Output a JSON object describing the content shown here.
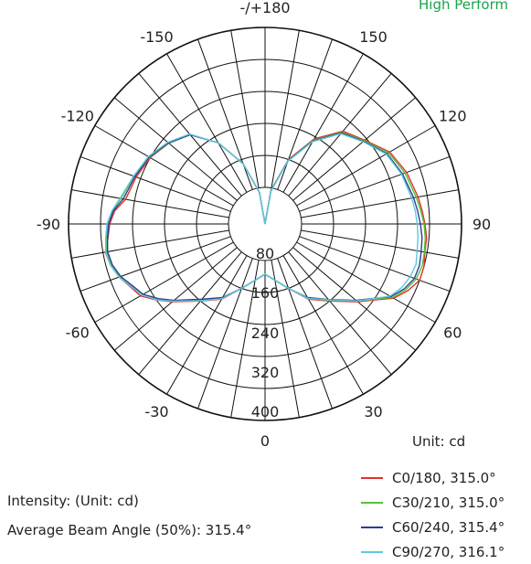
{
  "header": {
    "top_label": "High Perform"
  },
  "chart_data": {
    "type": "polar",
    "unit_label": "Unit: cd",
    "radial_ticks": [
      "80",
      "160",
      "240",
      "320",
      "400"
    ],
    "radial_max": 400,
    "angle_labels": [
      {
        "angle": 180,
        "text": "-/+180"
      },
      {
        "angle": -150,
        "text": "-150"
      },
      {
        "angle": 150,
        "text": "150"
      },
      {
        "angle": -120,
        "text": "-120"
      },
      {
        "angle": 120,
        "text": "120"
      },
      {
        "angle": -90,
        "text": "-90"
      },
      {
        "angle": 90,
        "text": "90"
      },
      {
        "angle": -60,
        "text": "-60"
      },
      {
        "angle": 60,
        "text": "60"
      },
      {
        "angle": -30,
        "text": "-30"
      },
      {
        "angle": 30,
        "text": "30"
      },
      {
        "angle": 0,
        "text": "0"
      }
    ],
    "series": [
      {
        "name": "C0/180, 315.0°",
        "color": "#e0342c",
        "points": [
          [
            -180,
            0
          ],
          [
            -170,
            70
          ],
          [
            -160,
            140
          ],
          [
            -150,
            205
          ],
          [
            -140,
            255
          ],
          [
            -130,
            275
          ],
          [
            -120,
            290
          ],
          [
            -110,
            300
          ],
          [
            -100,
            310
          ],
          [
            -95,
            330
          ],
          [
            -90,
            340
          ],
          [
            -85,
            345
          ],
          [
            -80,
            355
          ],
          [
            -75,
            350
          ],
          [
            -70,
            340
          ],
          [
            -65,
            325
          ],
          [
            -60,
            315
          ],
          [
            -55,
            290
          ],
          [
            -50,
            265
          ],
          [
            -40,
            220
          ],
          [
            -30,
            190
          ],
          [
            -20,
            150
          ],
          [
            -10,
            125
          ],
          [
            0,
            110
          ],
          [
            10,
            125
          ],
          [
            20,
            150
          ],
          [
            30,
            190
          ],
          [
            40,
            220
          ],
          [
            50,
            265
          ],
          [
            55,
            290
          ],
          [
            60,
            325
          ],
          [
            65,
            345
          ],
          [
            70,
            360
          ],
          [
            75,
            360
          ],
          [
            80,
            355
          ],
          [
            85,
            355
          ],
          [
            90,
            350
          ],
          [
            95,
            345
          ],
          [
            100,
            340
          ],
          [
            110,
            330
          ],
          [
            120,
            315
          ],
          [
            130,
            285
          ],
          [
            140,
            265
          ],
          [
            150,
            215
          ],
          [
            160,
            150
          ],
          [
            170,
            75
          ],
          [
            180,
            0
          ]
        ]
      },
      {
        "name": "C30/210, 315.0°",
        "color": "#56c23a",
        "points": [
          [
            -180,
            0
          ],
          [
            -170,
            70
          ],
          [
            -160,
            140
          ],
          [
            -150,
            205
          ],
          [
            -140,
            255
          ],
          [
            -130,
            275
          ],
          [
            -120,
            292
          ],
          [
            -110,
            305
          ],
          [
            -100,
            320
          ],
          [
            -95,
            335
          ],
          [
            -90,
            345
          ],
          [
            -85,
            348
          ],
          [
            -80,
            352
          ],
          [
            -75,
            348
          ],
          [
            -70,
            338
          ],
          [
            -65,
            322
          ],
          [
            -60,
            310
          ],
          [
            -55,
            288
          ],
          [
            -50,
            262
          ],
          [
            -40,
            218
          ],
          [
            -30,
            188
          ],
          [
            -20,
            150
          ],
          [
            -10,
            125
          ],
          [
            0,
            110
          ],
          [
            10,
            125
          ],
          [
            20,
            150
          ],
          [
            30,
            188
          ],
          [
            40,
            218
          ],
          [
            50,
            262
          ],
          [
            55,
            288
          ],
          [
            60,
            322
          ],
          [
            65,
            340
          ],
          [
            70,
            352
          ],
          [
            75,
            356
          ],
          [
            80,
            354
          ],
          [
            85,
            352
          ],
          [
            90,
            348
          ],
          [
            95,
            342
          ],
          [
            100,
            336
          ],
          [
            110,
            326
          ],
          [
            120,
            312
          ],
          [
            130,
            283
          ],
          [
            140,
            262
          ],
          [
            150,
            212
          ],
          [
            160,
            148
          ],
          [
            170,
            74
          ],
          [
            180,
            0
          ]
        ]
      },
      {
        "name": "C60/240, 315.4°",
        "color": "#2c3f8f",
        "points": [
          [
            -180,
            0
          ],
          [
            -170,
            70
          ],
          [
            -160,
            140
          ],
          [
            -150,
            205
          ],
          [
            -140,
            255
          ],
          [
            -130,
            276
          ],
          [
            -120,
            293
          ],
          [
            -110,
            303
          ],
          [
            -100,
            315
          ],
          [
            -95,
            333
          ],
          [
            -90,
            342
          ],
          [
            -85,
            346
          ],
          [
            -80,
            350
          ],
          [
            -75,
            346
          ],
          [
            -70,
            336
          ],
          [
            -65,
            320
          ],
          [
            -60,
            308
          ],
          [
            -55,
            285
          ],
          [
            -50,
            260
          ],
          [
            -40,
            215
          ],
          [
            -30,
            186
          ],
          [
            -20,
            150
          ],
          [
            -10,
            125
          ],
          [
            0,
            110
          ],
          [
            10,
            125
          ],
          [
            20,
            150
          ],
          [
            30,
            186
          ],
          [
            40,
            216
          ],
          [
            50,
            260
          ],
          [
            55,
            285
          ],
          [
            60,
            318
          ],
          [
            65,
            336
          ],
          [
            70,
            348
          ],
          [
            75,
            350
          ],
          [
            80,
            347
          ],
          [
            85,
            345
          ],
          [
            90,
            340
          ],
          [
            95,
            335
          ],
          [
            100,
            330
          ],
          [
            110,
            320
          ],
          [
            120,
            308
          ],
          [
            130,
            281
          ],
          [
            140,
            260
          ],
          [
            150,
            210
          ],
          [
            160,
            147
          ],
          [
            170,
            73
          ],
          [
            180,
            0
          ]
        ]
      },
      {
        "name": "C90/270, 316.1°",
        "color": "#5ec8e0",
        "points": [
          [
            -180,
            0
          ],
          [
            -170,
            70
          ],
          [
            -160,
            140
          ],
          [
            -150,
            205
          ],
          [
            -140,
            257
          ],
          [
            -130,
            278
          ],
          [
            -120,
            295
          ],
          [
            -110,
            306
          ],
          [
            -100,
            322
          ],
          [
            -95,
            336
          ],
          [
            -90,
            346
          ],
          [
            -85,
            350
          ],
          [
            -80,
            354
          ],
          [
            -75,
            350
          ],
          [
            -70,
            340
          ],
          [
            -65,
            323
          ],
          [
            -60,
            311
          ],
          [
            -55,
            289
          ],
          [
            -50,
            263
          ],
          [
            -40,
            219
          ],
          [
            -30,
            189
          ],
          [
            -20,
            150
          ],
          [
            -10,
            125
          ],
          [
            0,
            110
          ],
          [
            10,
            125
          ],
          [
            20,
            150
          ],
          [
            30,
            188
          ],
          [
            40,
            217
          ],
          [
            50,
            262
          ],
          [
            55,
            286
          ],
          [
            60,
            316
          ],
          [
            65,
            330
          ],
          [
            70,
            338
          ],
          [
            75,
            342
          ],
          [
            80,
            338
          ],
          [
            85,
            336
          ],
          [
            90,
            333
          ],
          [
            95,
            330
          ],
          [
            100,
            326
          ],
          [
            110,
            318
          ],
          [
            120,
            306
          ],
          [
            130,
            280
          ],
          [
            140,
            258
          ],
          [
            150,
            208
          ],
          [
            160,
            146
          ],
          [
            170,
            72
          ],
          [
            180,
            0
          ]
        ]
      }
    ]
  },
  "footer": {
    "intensity": "Intensity: (Unit: cd)",
    "beam_angle": "Average Beam Angle (50%):  315.4°"
  }
}
